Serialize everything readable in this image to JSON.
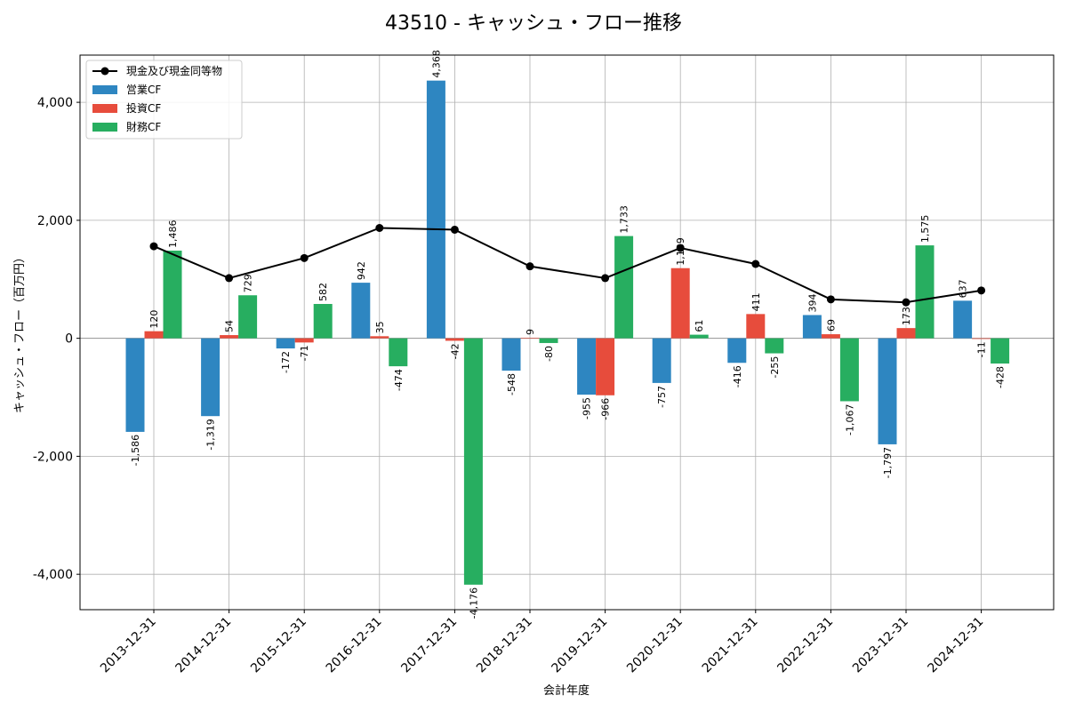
{
  "chart_data": {
    "type": "bar",
    "title": "43510 - キャッシュ・フロー推移",
    "xlabel": "会計年度",
    "ylabel": "キャッシュ・フロー（百万円）",
    "ylim": [
      -4600,
      4800
    ],
    "yticks": [
      -4000,
      -2000,
      0,
      2000,
      4000
    ],
    "ytick_labels": [
      "-4,000",
      "-2,000",
      "0",
      "2,000",
      "4,000"
    ],
    "grid": true,
    "legend_position": "top-left",
    "categories": [
      "2013-12-31",
      "2014-12-31",
      "2015-12-31",
      "2016-12-31",
      "2017-12-31",
      "2018-12-31",
      "2019-12-31",
      "2020-12-31",
      "2021-12-31",
      "2022-12-31",
      "2023-12-31",
      "2024-12-31"
    ],
    "series": [
      {
        "name": "営業CF",
        "kind": "bar",
        "color": "#2e86c1",
        "values": [
          -1586,
          -1319,
          -172,
          942,
          4368,
          -548,
          -955,
          -757,
          -416,
          394,
          -1797,
          637
        ],
        "labels": [
          "-1,586",
          "-1,319",
          "-172",
          "942",
          "4,368",
          "-548",
          "-955",
          "-757",
          "-416",
          "394",
          "-1,797",
          "637"
        ]
      },
      {
        "name": "投資CF",
        "kind": "bar",
        "color": "#e74c3c",
        "values": [
          120,
          54,
          -71,
          35,
          -42,
          9,
          -966,
          1189,
          411,
          69,
          173,
          -11
        ],
        "labels": [
          "120",
          "54",
          "-71",
          "35",
          "-42",
          "9",
          "-966",
          "1,189",
          "411",
          "69",
          "173",
          "-11"
        ]
      },
      {
        "name": "財務CF",
        "kind": "bar",
        "color": "#27ae60",
        "values": [
          1486,
          729,
          582,
          -474,
          -4176,
          -80,
          1733,
          61,
          -255,
          -1067,
          1575,
          -428
        ],
        "labels": [
          "1,486",
          "729",
          "582",
          "-474",
          "-4,176",
          "-80",
          "1,733",
          "61",
          "-255",
          "-1,067",
          "1,575",
          "-428"
        ]
      },
      {
        "name": "現金及び現金同等物",
        "kind": "line",
        "color": "#000000",
        "values": [
          1560,
          1020,
          1360,
          1870,
          1840,
          1220,
          1020,
          1530,
          1260,
          660,
          610,
          810
        ]
      }
    ]
  }
}
